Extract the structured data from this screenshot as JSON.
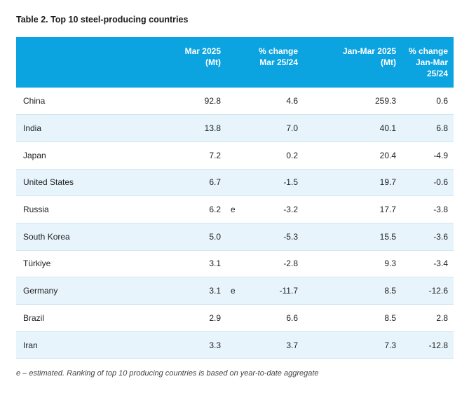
{
  "title": "Table 2. Top 10 steel-producing countries",
  "headers": {
    "mar_line1": "Mar 2025",
    "mar_line2": "(Mt)",
    "chg_line1": "% change",
    "chg_line2": "Mar 25/24",
    "jan_line1": "Jan-Mar 2025",
    "jan_line2": "(Mt)",
    "chg2_line1": "% change",
    "chg2_line2": "Jan-Mar",
    "chg2_line3": "25/24"
  },
  "rows": [
    {
      "country": "China",
      "mar": "92.8",
      "flag": "",
      "chg": "4.6",
      "jan": "259.3",
      "chg2": "0.6"
    },
    {
      "country": "India",
      "mar": "13.8",
      "flag": "",
      "chg": "7.0",
      "jan": "40.1",
      "chg2": "6.8"
    },
    {
      "country": "Japan",
      "mar": "7.2",
      "flag": "",
      "chg": "0.2",
      "jan": "20.4",
      "chg2": "-4.9"
    },
    {
      "country": "United States",
      "mar": "6.7",
      "flag": "",
      "chg": "-1.5",
      "jan": "19.7",
      "chg2": "-0.6"
    },
    {
      "country": "Russia",
      "mar": "6.2",
      "flag": "e",
      "chg": "-3.2",
      "jan": "17.7",
      "chg2": "-3.8"
    },
    {
      "country": "South Korea",
      "mar": "5.0",
      "flag": "",
      "chg": "-5.3",
      "jan": "15.5",
      "chg2": "-3.6"
    },
    {
      "country": "Türkiye",
      "mar": "3.1",
      "flag": "",
      "chg": "-2.8",
      "jan": "9.3",
      "chg2": "-3.4"
    },
    {
      "country": "Germany",
      "mar": "3.1",
      "flag": "e",
      "chg": "-11.7",
      "jan": "8.5",
      "chg2": "-12.6"
    },
    {
      "country": "Brazil",
      "mar": "2.9",
      "flag": "",
      "chg": "6.6",
      "jan": "8.5",
      "chg2": "2.8"
    },
    {
      "country": "Iran",
      "mar": "3.3",
      "flag": "",
      "chg": "3.7",
      "jan": "7.3",
      "chg2": "-12.8"
    }
  ],
  "footnote": "e – estimated. Ranking of top 10 producing countries is based on year-to-date aggregate",
  "colors": {
    "header_bg": "#0ba3e0",
    "alt_row_bg": "#e8f4fb",
    "row_border": "#cfe6f1"
  }
}
